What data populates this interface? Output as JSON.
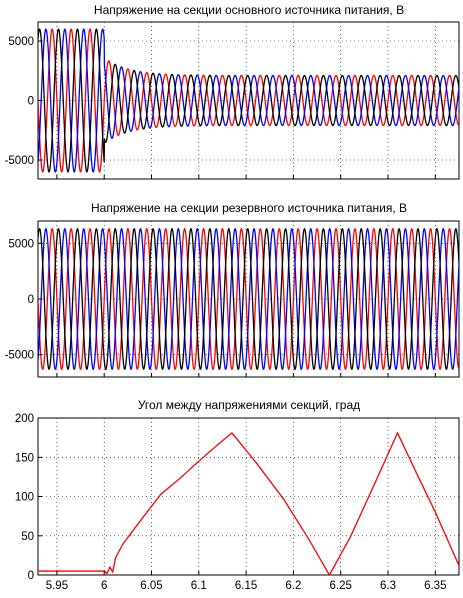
{
  "chart_data": [
    {
      "type": "line",
      "title": "Напряжение на секции основного источника питания, В",
      "ylim": [
        -6600,
        6600
      ],
      "yticks": [
        5000,
        0,
        -5000
      ],
      "ytick_labels": [
        "5000",
        "0",
        "-5000"
      ],
      "xlim": [
        5.93,
        6.375
      ],
      "xticks": [
        5.95,
        6.0,
        6.05,
        6.1,
        6.15,
        6.2,
        6.25,
        6.3,
        6.35
      ],
      "grid": true,
      "waveform": {
        "kind": "three_phase_sine",
        "frequency_hz": 50,
        "amplitude_before": 6000,
        "switch_time": 6.0,
        "amplitude_dip": 3600,
        "amplitude_after": 2100
      },
      "series": [
        {
          "color": "#ff0000"
        },
        {
          "color": "#0000ff"
        },
        {
          "color": "#000000"
        }
      ]
    },
    {
      "type": "line",
      "title": "Напряжение на секции резервного источника питания, В",
      "ylim": [
        -7000,
        7000
      ],
      "yticks": [
        5000,
        0,
        -5000
      ],
      "ytick_labels": [
        "5000",
        "0",
        "-5000"
      ],
      "xlim": [
        5.93,
        6.375
      ],
      "xticks": [
        5.95,
        6.0,
        6.05,
        6.1,
        6.15,
        6.2,
        6.25,
        6.3,
        6.35
      ],
      "grid": true,
      "waveform": {
        "kind": "three_phase_sine",
        "frequency_hz": 50,
        "amplitude": 6300
      },
      "series": [
        {
          "color": "#ff0000"
        },
        {
          "color": "#0000ff"
        },
        {
          "color": "#000000"
        }
      ]
    },
    {
      "type": "line",
      "title": "Угол между напряжениями секций, град",
      "ylim": [
        0,
        200
      ],
      "yticks": [
        200,
        150,
        100,
        50,
        0
      ],
      "ytick_labels": [
        "200",
        "150",
        "100",
        "50",
        "0"
      ],
      "xlim": [
        5.93,
        6.375
      ],
      "xticks": [
        5.95,
        6.0,
        6.05,
        6.1,
        6.15,
        6.2,
        6.25,
        6.3,
        6.35
      ],
      "xtick_labels": [
        "5.95",
        "6",
        "6.05",
        "6.1",
        "6.15",
        "6.2",
        "6.25",
        "6.3",
        "6.35"
      ],
      "grid": true,
      "series": [
        {
          "color": "#ff0000",
          "x": [
            5.93,
            6.0,
            6.003,
            6.006,
            6.009,
            6.012,
            6.02,
            6.04,
            6.06,
            6.08,
            6.1,
            6.12,
            6.135,
            6.16,
            6.19,
            6.215,
            6.238,
            6.26,
            6.285,
            6.31,
            6.33,
            6.35,
            6.375
          ],
          "values": [
            5,
            5,
            2,
            10,
            4,
            22,
            40,
            72,
            103,
            123,
            145,
            166,
            181,
            144,
            96,
            48,
            0,
            48,
            114,
            181,
            130,
            80,
            12
          ]
        }
      ]
    }
  ]
}
